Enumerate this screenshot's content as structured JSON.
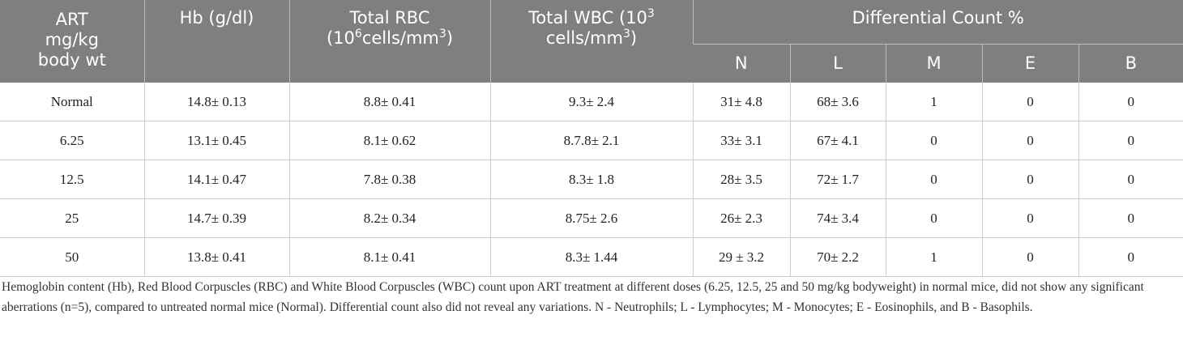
{
  "table": {
    "header": {
      "art": [
        "ART",
        "mg/kg",
        "body wt"
      ],
      "hb": "Hb (g/dl)",
      "rbc": {
        "label": "Total RBC",
        "open": "(10",
        "exp": "6",
        "unit": "cells/mm",
        "unit_exp": "3",
        "close": ")"
      },
      "wbc": {
        "label": "Total WBC (10",
        "exp": "3",
        "unit": "cells/mm",
        "unit_exp": "3",
        "close": ")"
      },
      "differential": "Differential Count %",
      "sub": [
        "N",
        "L",
        "M",
        "E",
        "B"
      ]
    },
    "rows": [
      [
        "Normal",
        "14.8± 0.13",
        "8.8± 0.41",
        "9.3± 2.4",
        "31± 4.8",
        "68± 3.6",
        "1",
        "0",
        "0"
      ],
      [
        "6.25",
        "13.1± 0.45",
        "8.1± 0.62",
        "8.7.8± 2.1",
        "33± 3.1",
        "67± 4.1",
        "0",
        "0",
        "0"
      ],
      [
        "12.5",
        "14.1± 0.47",
        "7.8± 0.38",
        "8.3± 1.8",
        "28± 3.5",
        "72± 1.7",
        "0",
        "0",
        "0"
      ],
      [
        "25",
        "14.7± 0.39",
        "8.2± 0.34",
        "8.75± 2.6",
        "26± 2.3",
        "74± 3.4",
        "0",
        "0",
        "0"
      ],
      [
        "50",
        "13.8± 0.41",
        "8.1± 0.41",
        "8.3± 1.44",
        "29 ± 3.2",
        "70± 2.2",
        "1",
        "0",
        "0"
      ]
    ],
    "footnote": "Hemoglobin content (Hb), Red Blood Corpuscles (RBC) and White Blood Corpuscles (WBC) count upon ART treatment at different doses (6.25, 12.5, 25 and 50 mg/kg bodyweight) in normal mice, did not show any significant aberrations (n=5), compared to untreated normal mice (Normal). Differential count also did not reveal any variations. N - Neutrophils; L - Lymphocytes; M - Monocytes; E - Eosinophils, and B - Basophils."
  }
}
